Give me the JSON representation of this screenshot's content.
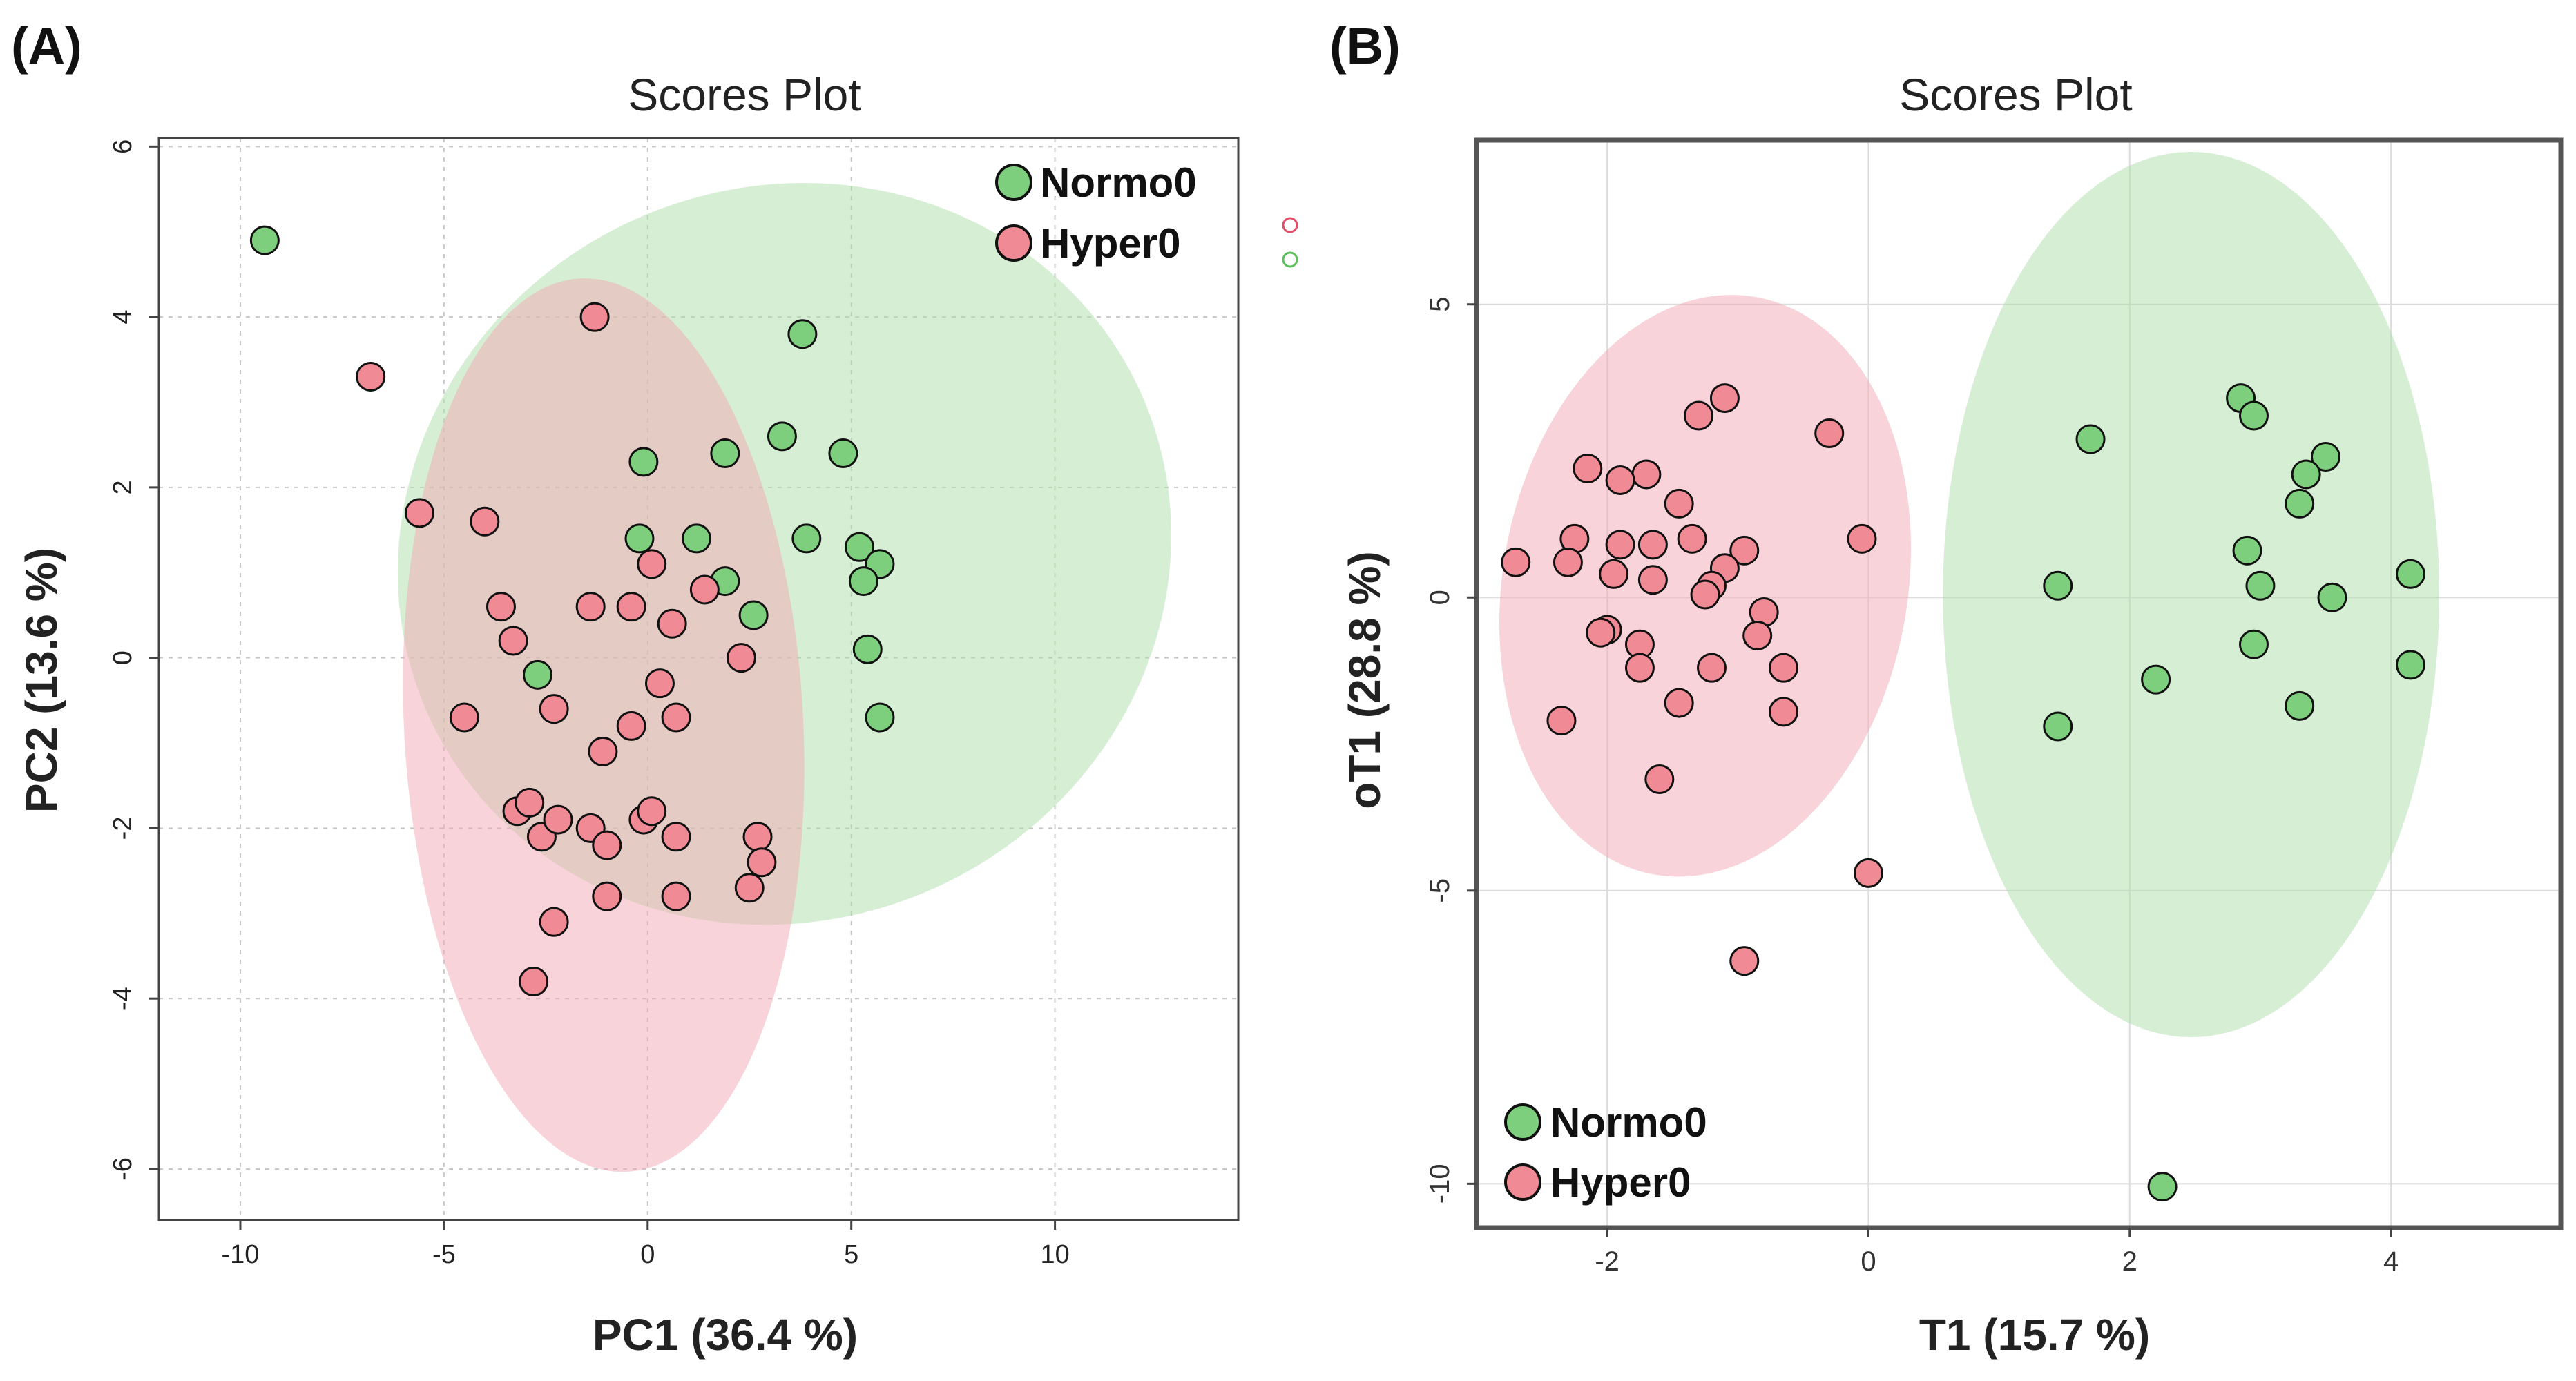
{
  "colors": {
    "normo": "#7dcf7d",
    "hyper": "#f08a94",
    "normo_ellipse": "#aee0aa",
    "hyper_ellipse": "#f2a9b6"
  },
  "chart_data": [
    {
      "id": "A",
      "panel_label": "(A)",
      "type": "scatter",
      "title": "Scores Plot",
      "xlabel": "PC1 (36.4 %)",
      "ylabel": "PC2 (13.6 %)",
      "xlim": [
        -12,
        14.5
      ],
      "ylim": [
        -6.6,
        6.1
      ],
      "xticks": [
        -10,
        -5,
        0,
        5,
        10
      ],
      "yticks": [
        -6,
        -4,
        -2,
        0,
        2,
        4,
        6
      ],
      "grid": true,
      "legend_position": "top-right",
      "legend": [
        {
          "label": "Normo0",
          "color_key": "normo"
        },
        {
          "label": "Hyper0",
          "color_key": "hyper"
        }
      ],
      "ellipses": [
        {
          "name": "Normo0",
          "cx": 3.36,
          "cy": 1.22,
          "rx": 9.6,
          "ry": 4.3,
          "angle_deg": -25,
          "color_key": "normo_ellipse",
          "opacity": 0.5
        },
        {
          "name": "Hyper0",
          "cx": -1.08,
          "cy": -0.79,
          "rx": 4.9,
          "ry": 5.25,
          "angle_deg": -3,
          "color_key": "hyper_ellipse",
          "opacity": 0.5
        }
      ],
      "series": [
        {
          "name": "Normo0",
          "color_key": "normo",
          "points": [
            [
              -9.4,
              4.9
            ],
            [
              3.8,
              3.8
            ],
            [
              -0.1,
              2.3
            ],
            [
              1.9,
              2.4
            ],
            [
              3.3,
              2.6
            ],
            [
              4.8,
              2.4
            ],
            [
              -0.2,
              1.4
            ],
            [
              1.2,
              1.4
            ],
            [
              3.9,
              1.4
            ],
            [
              5.2,
              1.3
            ],
            [
              5.7,
              1.1
            ],
            [
              5.3,
              0.9
            ],
            [
              1.9,
              0.9
            ],
            [
              2.6,
              0.5
            ],
            [
              5.4,
              0.1
            ],
            [
              5.7,
              -0.7
            ],
            [
              -2.7,
              -0.2
            ]
          ]
        },
        {
          "name": "Hyper0",
          "color_key": "hyper",
          "points": [
            [
              -1.3,
              4.0
            ],
            [
              -6.8,
              3.3
            ],
            [
              -5.6,
              1.7
            ],
            [
              -4.0,
              1.6
            ],
            [
              0.1,
              1.1
            ],
            [
              -3.6,
              0.6
            ],
            [
              -1.4,
              0.6
            ],
            [
              -0.4,
              0.6
            ],
            [
              0.6,
              0.4
            ],
            [
              1.4,
              0.8
            ],
            [
              -3.3,
              0.2
            ],
            [
              2.3,
              0.0
            ],
            [
              0.3,
              -0.3
            ],
            [
              -2.3,
              -0.6
            ],
            [
              -4.5,
              -0.7
            ],
            [
              0.7,
              -0.7
            ],
            [
              -0.4,
              -0.8
            ],
            [
              -1.1,
              -1.1
            ],
            [
              -3.2,
              -1.8
            ],
            [
              -2.9,
              -1.7
            ],
            [
              -2.6,
              -2.1
            ],
            [
              -2.2,
              -1.9
            ],
            [
              -1.4,
              -2.0
            ],
            [
              -0.1,
              -1.9
            ],
            [
              0.1,
              -1.8
            ],
            [
              -1.0,
              -2.2
            ],
            [
              0.7,
              -2.1
            ],
            [
              2.7,
              -2.1
            ],
            [
              2.8,
              -2.4
            ],
            [
              2.5,
              -2.7
            ],
            [
              -1.0,
              -2.8
            ],
            [
              0.7,
              -2.8
            ],
            [
              -2.3,
              -3.1
            ],
            [
              -2.8,
              -3.8
            ]
          ]
        }
      ]
    },
    {
      "id": "B",
      "panel_label": "(B)",
      "type": "scatter",
      "title": "Scores Plot",
      "xlabel": "T1 (15.7 %)",
      "ylabel": "oT1 (28.8 %)",
      "xlim": [
        -3.0,
        5.3
      ],
      "ylim": [
        -10.75,
        7.8
      ],
      "xticks": [
        -2,
        0,
        2,
        4
      ],
      "yticks": [
        -10,
        -5,
        0,
        5
      ],
      "grid": true,
      "legend_position": "bottom-left",
      "legend": [
        {
          "label": "Normo0",
          "color_key": "normo"
        },
        {
          "label": "Hyper0",
          "color_key": "hyper"
        }
      ],
      "ellipses": [
        {
          "name": "Normo0",
          "cx": 2.47,
          "cy": 0.05,
          "rx": 1.9,
          "ry": 7.55,
          "angle_deg": 0,
          "color_key": "normo_ellipse",
          "opacity": 0.5
        },
        {
          "name": "Hyper0",
          "cx": -1.25,
          "cy": 0.2,
          "rx": 1.55,
          "ry": 5.0,
          "angle_deg": 10,
          "color_key": "hyper_ellipse",
          "opacity": 0.5
        }
      ],
      "series": [
        {
          "name": "Normo0",
          "color_key": "normo",
          "points": [
            [
              2.85,
              3.4
            ],
            [
              2.95,
              3.1
            ],
            [
              1.7,
              2.7
            ],
            [
              3.5,
              2.4
            ],
            [
              3.35,
              2.1
            ],
            [
              3.3,
              1.6
            ],
            [
              2.9,
              0.8
            ],
            [
              1.45,
              0.2
            ],
            [
              3.0,
              0.2
            ],
            [
              4.15,
              0.4
            ],
            [
              3.55,
              0.0
            ],
            [
              2.95,
              -0.8
            ],
            [
              4.15,
              -1.15
            ],
            [
              2.2,
              -1.4
            ],
            [
              3.3,
              -1.85
            ],
            [
              1.45,
              -2.2
            ],
            [
              2.25,
              -10.05
            ]
          ]
        },
        {
          "name": "Hyper0",
          "color_key": "hyper",
          "points": [
            [
              -1.1,
              3.4
            ],
            [
              -1.3,
              3.1
            ],
            [
              -0.3,
              2.8
            ],
            [
              -2.15,
              2.2
            ],
            [
              -1.7,
              2.1
            ],
            [
              -1.9,
              2.0
            ],
            [
              -1.45,
              1.6
            ],
            [
              -2.25,
              1.0
            ],
            [
              -1.9,
              0.9
            ],
            [
              -1.65,
              0.9
            ],
            [
              -1.35,
              1.0
            ],
            [
              -0.05,
              1.0
            ],
            [
              -2.7,
              0.6
            ],
            [
              -2.3,
              0.6
            ],
            [
              -0.95,
              0.8
            ],
            [
              -1.1,
              0.5
            ],
            [
              -1.95,
              0.4
            ],
            [
              -1.65,
              0.3
            ],
            [
              -1.2,
              0.2
            ],
            [
              -1.25,
              0.05
            ],
            [
              -0.8,
              -0.25
            ],
            [
              -2.0,
              -0.55
            ],
            [
              -2.05,
              -0.6
            ],
            [
              -0.85,
              -0.65
            ],
            [
              -1.75,
              -0.8
            ],
            [
              -1.75,
              -1.2
            ],
            [
              -1.2,
              -1.2
            ],
            [
              -0.65,
              -1.2
            ],
            [
              -1.45,
              -1.8
            ],
            [
              -0.65,
              -1.95
            ],
            [
              -2.35,
              -2.1
            ],
            [
              -1.6,
              -3.1
            ],
            [
              0.0,
              -4.7
            ],
            [
              -0.95,
              -6.2
            ]
          ]
        }
      ]
    }
  ]
}
